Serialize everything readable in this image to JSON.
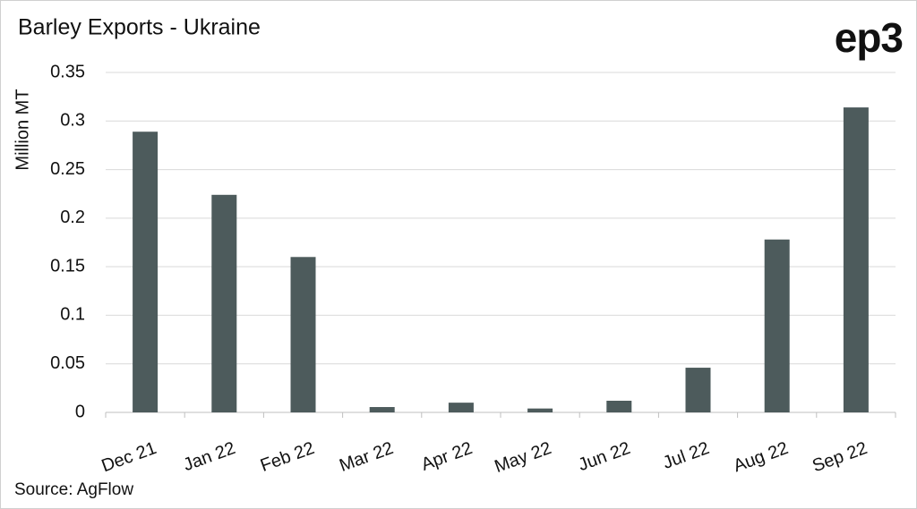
{
  "chart_data": {
    "type": "bar",
    "title": "Barley Exports - Ukraine",
    "logo": "ep3",
    "y_label": "Million MT",
    "source": "Source: AgFlow",
    "categories": [
      "Dec 21",
      "Jan 22",
      "Feb 22",
      "Mar 22",
      "Apr 22",
      "May 22",
      "Jun 22",
      "Jul 22",
      "Aug 22",
      "Sep 22"
    ],
    "values": [
      0.289,
      0.224,
      0.16,
      0.0055,
      0.01,
      0.004,
      0.012,
      0.046,
      0.178,
      0.314
    ],
    "color": "#4d5b5c",
    "ylim": [
      0,
      0.35
    ],
    "yticks": [
      0,
      0.05,
      0.1,
      0.15,
      0.2,
      0.25,
      0.3,
      0.35
    ],
    "grid": true
  }
}
